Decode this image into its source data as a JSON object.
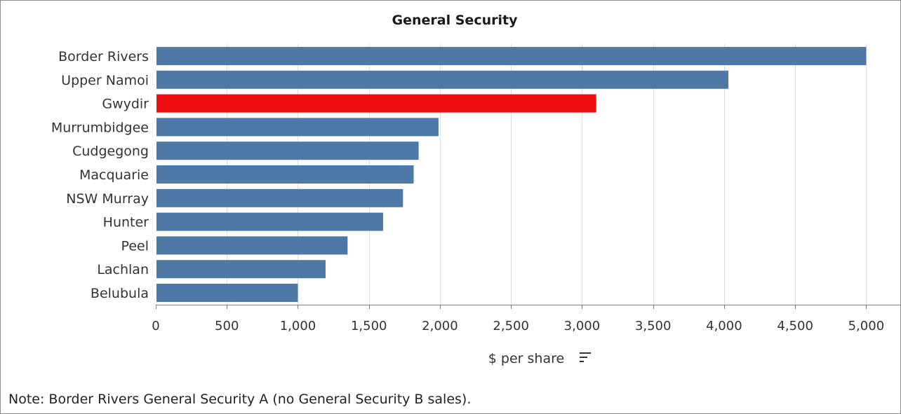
{
  "chart_data": {
    "type": "bar",
    "orientation": "horizontal",
    "title": "General Security",
    "xlabel": "$ per share",
    "ylabel": "",
    "categories": [
      "Border Rivers",
      "Upper Namoi",
      "Gwydir",
      "Murrumbidgee",
      "Cudgegong",
      "Macquarie",
      "NSW Murray",
      "Hunter",
      "Peel",
      "Lachlan",
      "Belubula"
    ],
    "values": [
      5000,
      4030,
      3100,
      1990,
      1850,
      1815,
      1740,
      1600,
      1350,
      1195,
      1000
    ],
    "highlight_category": "Gwydir",
    "xlim": [
      0,
      5250
    ],
    "xticks": [
      0,
      500,
      1000,
      1500,
      2000,
      2500,
      3000,
      3500,
      4000,
      4500,
      5000
    ],
    "xtick_labels": [
      "0",
      "500",
      "1,000",
      "1,500",
      "2,000",
      "2,500",
      "3,000",
      "3,500",
      "4,000",
      "4,500",
      "5,000"
    ],
    "grid": true,
    "legend": "none",
    "colors": {
      "bar": "#4e79a7",
      "highlight": "#ee0e11",
      "grid": "#dddddd",
      "axis": "#7f7f7f"
    }
  },
  "sort_icon": "sort-descending-icon",
  "note": "Note: Border Rivers General Security A (no General Security B sales)."
}
